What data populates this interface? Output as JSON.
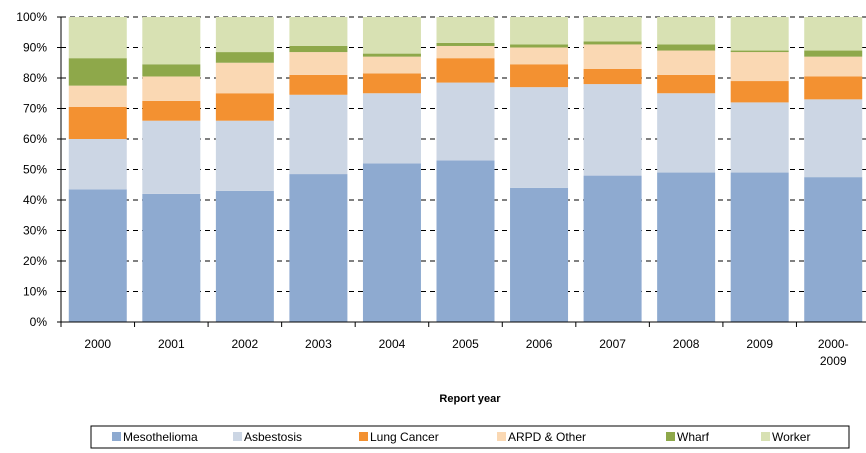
{
  "chart_data": {
    "type": "bar",
    "stacked": true,
    "normalized": true,
    "categories": [
      "2000",
      "2001",
      "2002",
      "2003",
      "2004",
      "2005",
      "2006",
      "2007",
      "2008",
      "2009",
      "2000-\n2009"
    ],
    "series": [
      {
        "name": "Mesothelioma",
        "color": "#8eaad0",
        "values": [
          43.5,
          42,
          43,
          48.5,
          52,
          53,
          44,
          48,
          49,
          49,
          47.5
        ]
      },
      {
        "name": "Asbestosis",
        "color": "#ccd6e4",
        "values": [
          16.5,
          24,
          23,
          26,
          23,
          25.5,
          33,
          30,
          26,
          23,
          25.5
        ]
      },
      {
        "name": "Lung Cancer",
        "color": "#f39131",
        "values": [
          10.5,
          6.5,
          9,
          6.5,
          6.5,
          8,
          7.5,
          5,
          6,
          7,
          7.5
        ]
      },
      {
        "name": "ARPD & Other",
        "color": "#fad8b3",
        "values": [
          7,
          8,
          10,
          7.5,
          5.5,
          4,
          5.5,
          8,
          8,
          9.5,
          6.5
        ]
      },
      {
        "name": "Wharf",
        "color": "#8ea84a",
        "values": [
          9,
          4,
          3.5,
          2,
          1,
          1,
          1,
          1,
          2,
          0.5,
          2
        ]
      },
      {
        "name": "Worker",
        "color": "#d8e1b3",
        "values": [
          13.5,
          15.5,
          11.5,
          9.5,
          12,
          8.5,
          9,
          8,
          9,
          11,
          11
        ]
      }
    ],
    "xlabel": "Report year",
    "ylabel": "",
    "ylim": [
      0,
      100
    ],
    "yticks": [
      "0%",
      "10%",
      "20%",
      "30%",
      "40%",
      "50%",
      "60%",
      "70%",
      "80%",
      "90%",
      "100%"
    ],
    "grid": "horizontal-dashed",
    "legend_position": "bottom"
  }
}
